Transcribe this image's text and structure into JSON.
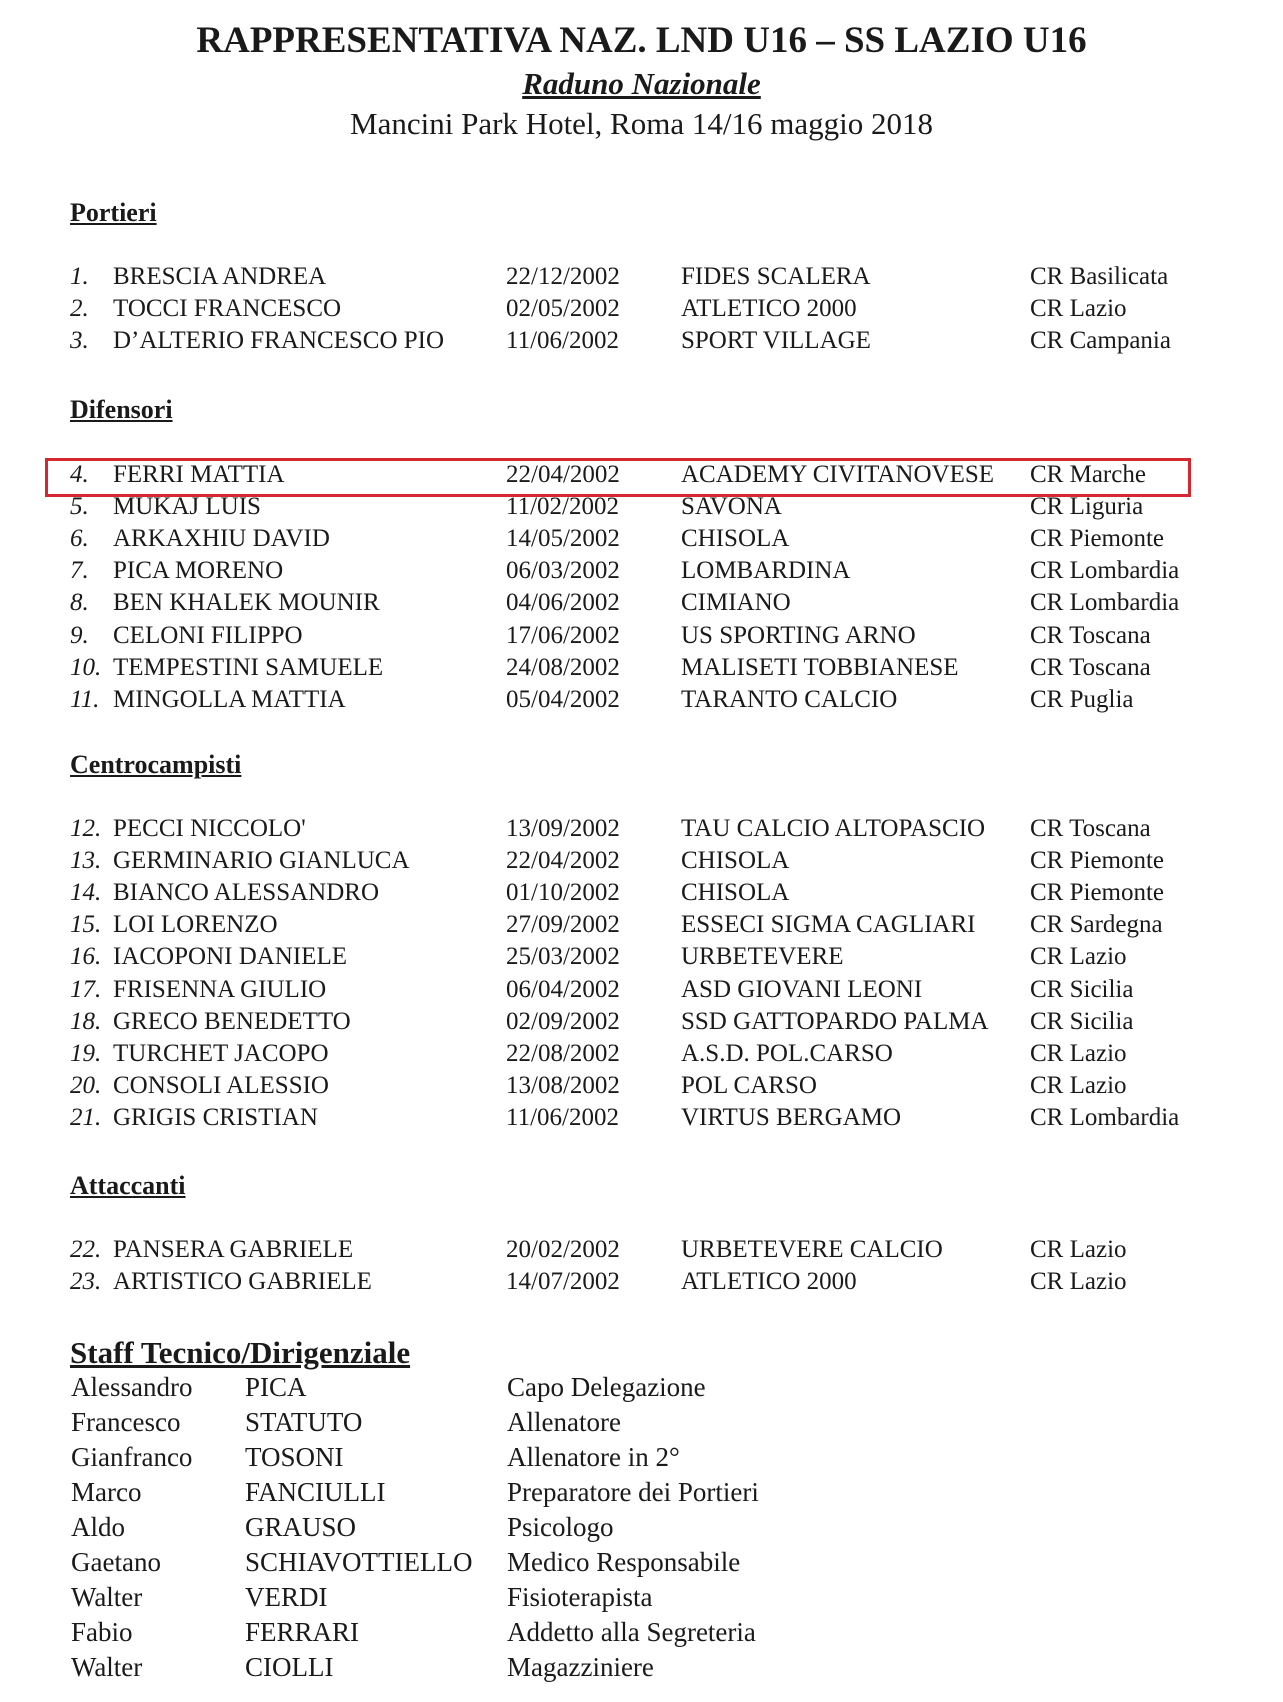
{
  "header": {
    "title": "RAPPRESENTATIVA NAZ. LND U16 – SS LAZIO U16",
    "subtitle": "Raduno Nazionale",
    "venue": "Mancini Park Hotel, Roma 14/16 maggio 2018"
  },
  "highlight_color": "#d6262f",
  "sections": [
    {
      "title": "Portieri",
      "players": [
        {
          "num": "1.",
          "name": "BRESCIA ANDREA",
          "dob": "22/12/2002",
          "club": "FIDES SCALERA",
          "cr": "CR Basilicata"
        },
        {
          "num": "2.",
          "name": "TOCCI FRANCESCO",
          "dob": "02/05/2002",
          "club": "ATLETICO 2000",
          "cr": "CR Lazio"
        },
        {
          "num": "3.",
          "name": "D’ALTERIO FRANCESCO PIO",
          "dob": "11/06/2002",
          "club": "SPORT VILLAGE",
          "cr": "CR Campania"
        }
      ]
    },
    {
      "title": "Difensori",
      "players": [
        {
          "num": "4.",
          "name": "FERRI MATTIA",
          "dob": "22/04/2002",
          "club": "ACADEMY CIVITANOVESE",
          "cr": "CR Marche",
          "highlighted": true
        },
        {
          "num": "5.",
          "name": "MUKAJ LUIS",
          "dob": "11/02/2002",
          "club": "SAVONA",
          "cr": "CR Liguria"
        },
        {
          "num": "6.",
          "name": "ARKAXHIU DAVID",
          "dob": "14/05/2002",
          "club": "CHISOLA",
          "cr": "CR Piemonte"
        },
        {
          "num": "7.",
          "name": "PICA MORENO",
          "dob": "06/03/2002",
          "club": "LOMBARDINA",
          "cr": "CR Lombardia"
        },
        {
          "num": "8.",
          "name": "BEN KHALEK MOUNIR",
          "dob": "04/06/2002",
          "club": "CIMIANO",
          "cr": "CR Lombardia"
        },
        {
          "num": "9.",
          "name": "CELONI FILIPPO",
          "dob": "17/06/2002",
          "club": "US SPORTING ARNO",
          "cr": "CR Toscana"
        },
        {
          "num": "10.",
          "name": "TEMPESTINI SAMUELE",
          "dob": "24/08/2002",
          "club": "MALISETI TOBBIANESE",
          "cr": "CR Toscana"
        },
        {
          "num": "11.",
          "name": "MINGOLLA MATTIA",
          "dob": "05/04/2002",
          "club": "TARANTO CALCIO",
          "cr": "CR Puglia"
        }
      ]
    },
    {
      "title": "Centrocampisti",
      "players": [
        {
          "num": "12.",
          "name": "PECCI NICCOLO'",
          "dob": "13/09/2002",
          "club": "TAU CALCIO ALTOPASCIO",
          "cr": "CR Toscana"
        },
        {
          "num": "13.",
          "name": "GERMINARIO GIANLUCA",
          "dob": "22/04/2002",
          "club": "CHISOLA",
          "cr": "CR Piemonte"
        },
        {
          "num": "14.",
          "name": "BIANCO ALESSANDRO",
          "dob": "01/10/2002",
          "club": "CHISOLA",
          "cr": "CR Piemonte"
        },
        {
          "num": "15.",
          "name": "LOI LORENZO",
          "dob": "27/09/2002",
          "club": "ESSECI SIGMA CAGLIARI",
          "cr": "CR Sardegna"
        },
        {
          "num": "16.",
          "name": "IACOPONI DANIELE",
          "dob": "25/03/2002",
          "club": "URBETEVERE",
          "cr": "CR Lazio"
        },
        {
          "num": "17.",
          "name": "FRISENNA GIULIO",
          "dob": "06/04/2002",
          "club": "ASD GIOVANI LEONI",
          "cr": "CR Sicilia"
        },
        {
          "num": "18.",
          "name": "GRECO BENEDETTO",
          "dob": "02/09/2002",
          "club": "SSD GATTOPARDO PALMA",
          "cr": "CR Sicilia"
        },
        {
          "num": "19.",
          "name": "TURCHET JACOPO",
          "dob": "22/08/2002",
          "club": "A.S.D. POL.CARSO",
          "cr": "CR Lazio"
        },
        {
          "num": "20.",
          "name": "CONSOLI ALESSIO",
          "dob": "13/08/2002",
          "club": "POL CARSO",
          "cr": "CR Lazio"
        },
        {
          "num": "21.",
          "name": "GRIGIS CRISTIAN",
          "dob": "11/06/2002",
          "club": "VIRTUS BERGAMO",
          "cr": "CR Lombardia"
        }
      ]
    },
    {
      "title": "Attaccanti",
      "players": [
        {
          "num": "22.",
          "name": "PANSERA GABRIELE",
          "dob": "20/02/2002",
          "club": "URBETEVERE CALCIO",
          "cr": "CR Lazio"
        },
        {
          "num": "23.",
          "name": "ARTISTICO GABRIELE",
          "dob": "14/07/2002",
          "club": "ATLETICO 2000",
          "cr": "CR Lazio"
        }
      ]
    }
  ],
  "staff": {
    "title": "Staff Tecnico/Dirigenziale",
    "members": [
      {
        "first": "Alessandro",
        "last": "PICA",
        "role": "Capo Delegazione"
      },
      {
        "first": "Francesco",
        "last": "STATUTO",
        "role": "Allenatore"
      },
      {
        "first": "Gianfranco",
        "last": "TOSONI",
        "role": "Allenatore in 2°"
      },
      {
        "first": "Marco",
        "last": "FANCIULLI",
        "role": "Preparatore dei Portieri"
      },
      {
        "first": "Aldo",
        "last": "GRAUSO",
        "role": "Psicologo"
      },
      {
        "first": "Gaetano",
        "last": "SCHIAVOTTIELLO",
        "role": "Medico Responsabile"
      },
      {
        "first": "Walter",
        "last": "VERDI",
        "role": "Fisioterapista"
      },
      {
        "first": "Fabio",
        "last": "FERRARI",
        "role": "Addetto alla Segreteria"
      },
      {
        "first": "Walter",
        "last": "CIOLLI",
        "role": "Magazziniere"
      }
    ]
  }
}
